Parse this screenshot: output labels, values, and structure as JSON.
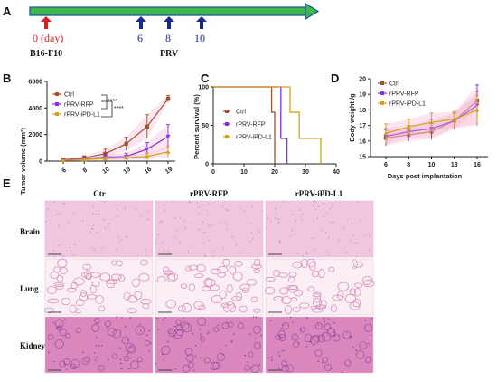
{
  "panels": {
    "A": "A",
    "B": "B",
    "C": "C",
    "D": "D",
    "E": "E"
  },
  "timeline": {
    "start_label": "0 (day)",
    "start_sub": "B16-F10",
    "injection_days": [
      "6",
      "8",
      "10"
    ],
    "injection_label": "PRV",
    "bar_colors": {
      "fill": "#3cb84a",
      "border": "#1f4e9a"
    },
    "arrow_colors": {
      "start": "#d22222",
      "injection": "#1a2a8a"
    }
  },
  "stats": {
    "sig1": "****",
    "sig2": "****"
  },
  "chart_data": [
    {
      "id": "B",
      "type": "line",
      "ylabel": "Tumor volume (mm³)",
      "xlabel": "",
      "categories": [
        "6",
        "8",
        "10",
        "13",
        "16",
        "19"
      ],
      "ylim": [
        0,
        6000
      ],
      "yticks": [
        "0",
        "2000",
        "4000",
        "6000"
      ],
      "series": [
        {
          "name": "Ctrl",
          "color": "#a0522d",
          "values": [
            100,
            250,
            550,
            1300,
            2600,
            4700
          ],
          "err": [
            60,
            150,
            350,
            500,
            900,
            250
          ]
        },
        {
          "name": "rPRV-RFP",
          "color": "#8a2be2",
          "values": [
            80,
            180,
            300,
            350,
            900,
            1850
          ],
          "err": [
            50,
            100,
            200,
            250,
            500,
            900
          ]
        },
        {
          "name": "rPRV-iPD-L1",
          "color": "#d4a017",
          "values": [
            60,
            120,
            200,
            250,
            350,
            700
          ],
          "err": [
            40,
            80,
            120,
            150,
            250,
            400
          ]
        }
      ]
    },
    {
      "id": "C",
      "type": "line",
      "ylabel": "Percent survival (%)",
      "xlabel": "",
      "xlim": [
        0,
        40
      ],
      "ylim": [
        0,
        100
      ],
      "xticks": [
        "0",
        "10",
        "20",
        "30",
        "40"
      ],
      "yticks": [
        "0",
        "50",
        "100"
      ],
      "series": [
        {
          "name": "Ctrl",
          "color": "#a0522d",
          "x": [
            0,
            19,
            19,
            20,
            20
          ],
          "y": [
            100,
            100,
            67,
            67,
            0
          ]
        },
        {
          "name": "rPRV-RFP",
          "color": "#8a2be2",
          "x": [
            0,
            22,
            22,
            24,
            24
          ],
          "y": [
            100,
            100,
            33,
            33,
            0
          ]
        },
        {
          "name": "rPRV-iPD-L1",
          "color": "#d4a017",
          "x": [
            0,
            25,
            25,
            28,
            28,
            32,
            32,
            35,
            35
          ],
          "y": [
            100,
            100,
            67,
            67,
            33,
            33,
            33,
            33,
            0
          ]
        }
      ]
    },
    {
      "id": "D",
      "type": "line",
      "ylabel": "Body weight /g",
      "xlabel": "Days post implantation",
      "categories": [
        "6",
        "8",
        "10",
        "13",
        "16"
      ],
      "ylim": [
        15,
        20
      ],
      "yticks": [
        "15",
        "16",
        "17",
        "18",
        "19",
        "20"
      ],
      "series": [
        {
          "name": "Ctrl",
          "color": "#a0522d",
          "values": [
            16.2,
            16.4,
            16.6,
            17.3,
            18.6
          ],
          "err": [
            0.5,
            0.4,
            0.5,
            0.5,
            0.6
          ]
        },
        {
          "name": "rPRV-RFP",
          "color": "#8a2be2",
          "values": [
            16.3,
            16.6,
            16.8,
            17.3,
            18.3
          ],
          "err": [
            0.5,
            0.4,
            0.6,
            0.5,
            1.3
          ]
        },
        {
          "name": "rPRV-iPD-L1",
          "color": "#d4a017",
          "values": [
            16.5,
            16.9,
            17.2,
            17.4,
            18.0
          ],
          "err": [
            0.6,
            0.5,
            0.6,
            0.5,
            0.9
          ]
        }
      ]
    }
  ],
  "histology": {
    "columns": [
      "Ctr",
      "rPRV-RFP",
      "rPRV-iPD-L1"
    ],
    "rows": [
      "Brain",
      "Lung",
      "Kidney"
    ],
    "colors": {
      "brain": "#f0c6de",
      "lung_bg": "#fbeff5",
      "lung_wall": "#d98fbd",
      "kidney": "#d987bd",
      "kidney_dark": "#7a3b8f"
    }
  }
}
